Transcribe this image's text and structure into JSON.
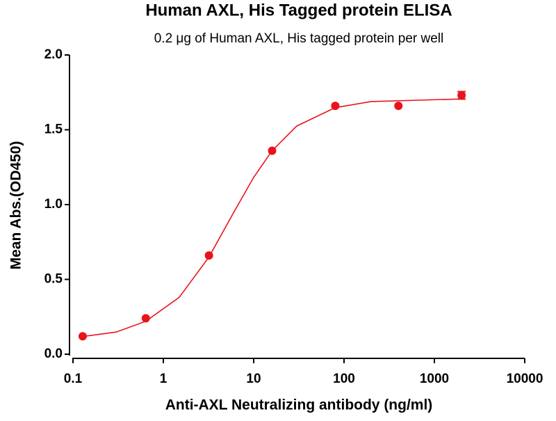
{
  "chart_data": {
    "type": "scatter",
    "title": "Human AXL, His Tagged protein ELISA",
    "subtitle": "0.2 μg of Human AXL, His tagged protein per well",
    "x_label": "Anti-AXL Neutralizing antibody (ng/ml)",
    "y_label": "Mean Abs.(OD450)",
    "x_scale": "log",
    "xlim": [
      0.1,
      10000
    ],
    "xticks": [
      0.1,
      1,
      10,
      100,
      1000,
      10000
    ],
    "ylim": [
      0,
      2
    ],
    "yticks": [
      {
        "value": 0,
        "label": "0.0"
      },
      {
        "value": 0.5,
        "label": "0.5"
      },
      {
        "value": 1,
        "label": "1.0"
      },
      {
        "value": 1.5,
        "label": "1.5"
      },
      {
        "value": 2,
        "label": "2.0"
      }
    ],
    "color": "#e8141b",
    "x": [
      0.128,
      0.64,
      3.2,
      16,
      80,
      400,
      2000
    ],
    "values": [
      0.12,
      0.24,
      0.66,
      1.36,
      1.66,
      1.66,
      1.73
    ],
    "errors": [
      null,
      null,
      null,
      null,
      null,
      null,
      0.025
    ],
    "fit": {
      "x": [
        0.128,
        0.3,
        0.64,
        1.5,
        3.2,
        6,
        10,
        16,
        30,
        80,
        200,
        2000
      ],
      "values": [
        0.118,
        0.148,
        0.22,
        0.38,
        0.65,
        0.947,
        1.182,
        1.36,
        1.525,
        1.648,
        1.689,
        1.706
      ]
    }
  }
}
